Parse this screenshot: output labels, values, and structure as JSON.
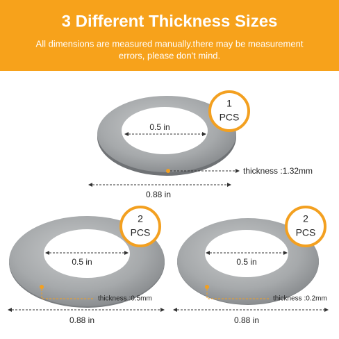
{
  "header": {
    "title": "3 Different Thickness Sizes",
    "subtitle_lines": [
      "All dimensions are measured manually.there may be measurement",
      "errors, please don't mind."
    ]
  },
  "items": [
    {
      "count": "1",
      "unit": "PCS",
      "inner": "0.5 in",
      "outer": "0.88 in",
      "thickness": "thickness :1.32mm"
    },
    {
      "count": "2",
      "unit": "PCS",
      "inner": "0.5 in",
      "outer": "0.88 in",
      "thickness": "thickness :0.5mm"
    },
    {
      "count": "2",
      "unit": "PCS",
      "inner": "0.5 in",
      "outer": "0.88 in",
      "thickness": "thickness :0.2mm"
    }
  ]
}
